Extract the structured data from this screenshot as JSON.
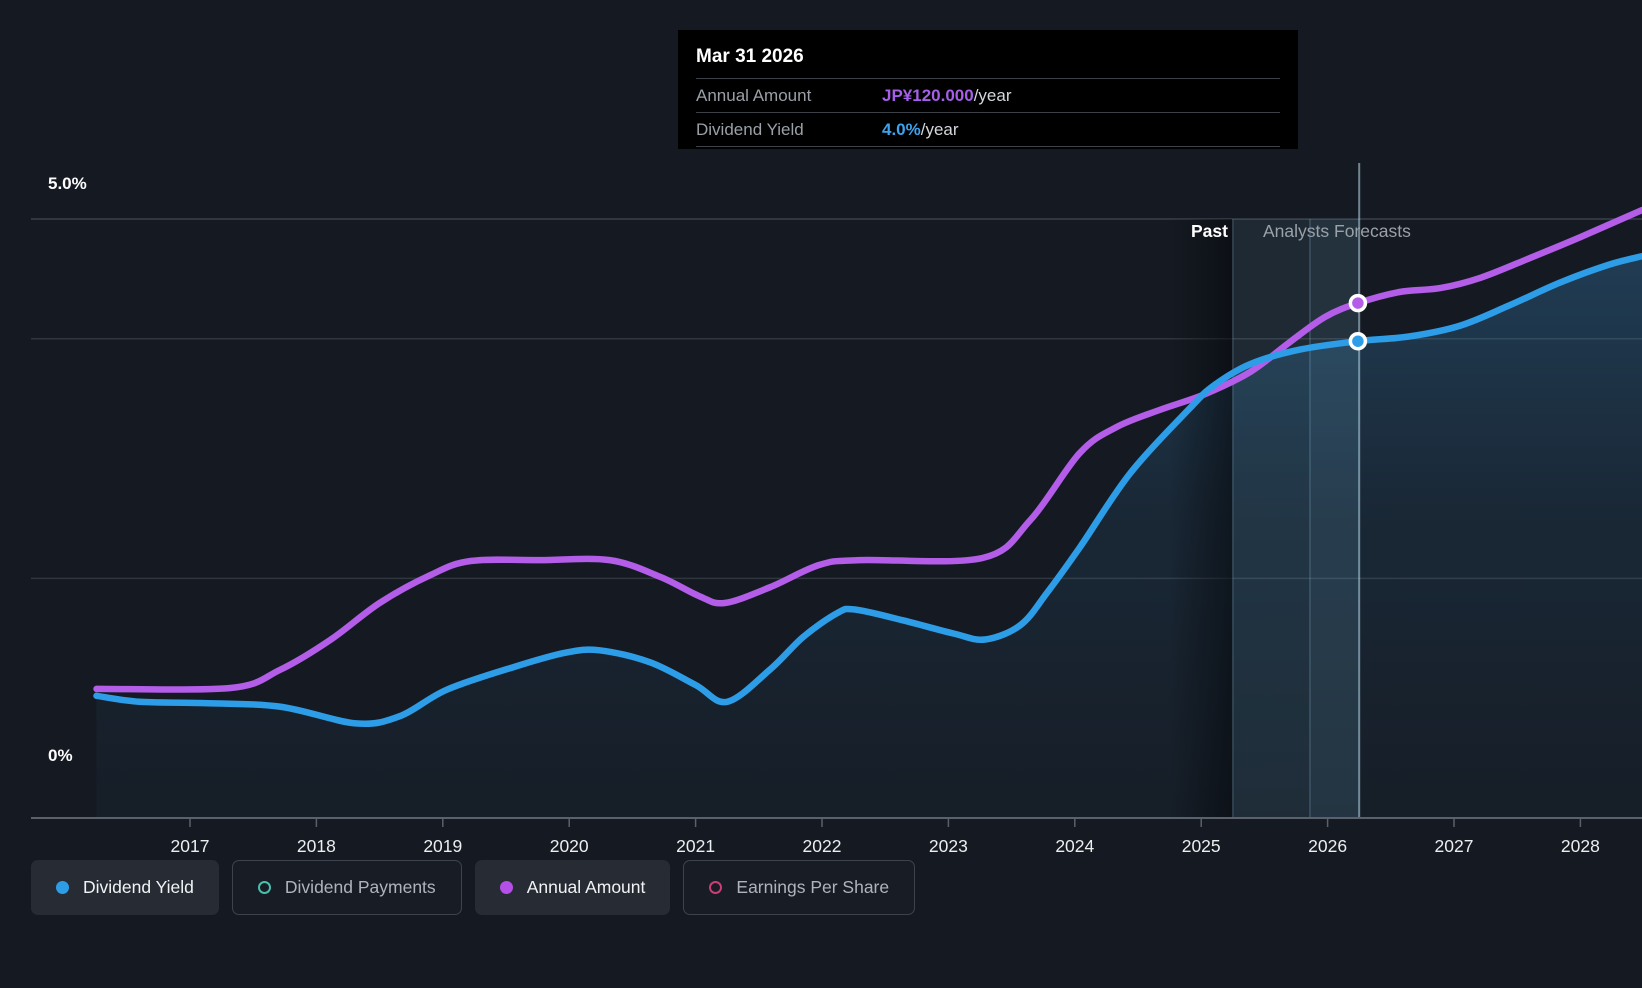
{
  "header_tooltip": {
    "date": "Mar 31 2026",
    "rows": [
      {
        "label": "Annual Amount",
        "value": "JP¥120.000",
        "suffix": "/year",
        "value_color": "#a55fe8"
      },
      {
        "label": "Dividend Yield",
        "value": "4.0%",
        "suffix": "/year",
        "value_color": "#3ea2ee"
      }
    ]
  },
  "axes": {
    "y_top_label": "5.0%",
    "y_bottom_label": "0%",
    "x_labels": [
      "2017",
      "2018",
      "2019",
      "2020",
      "2021",
      "2022",
      "2023",
      "2024",
      "2025",
      "2026",
      "2027",
      "2028"
    ]
  },
  "regions": {
    "past_label": "Past",
    "forecast_label": "Analysts Forecasts"
  },
  "legend": {
    "items": [
      {
        "label": "Dividend Yield",
        "marker": "filled",
        "color": "#2d9de8",
        "chip": "filled"
      },
      {
        "label": "Dividend Payments",
        "marker": "outline",
        "color": "#49c0ae",
        "chip": "outlined"
      },
      {
        "label": "Annual Amount",
        "marker": "filled",
        "color": "#b44fe8",
        "chip": "filled"
      },
      {
        "label": "Earnings Per Share",
        "marker": "outline",
        "color": "#cb3d74",
        "chip": "outlined"
      }
    ]
  },
  "chart_data": {
    "type": "line",
    "title": "Dividend yield history and forecast",
    "x_axis": {
      "ticks": [
        2017,
        2018,
        2019,
        2020,
        2021,
        2022,
        2023,
        2024,
        2025,
        2026,
        2027,
        2028
      ],
      "range": [
        2016.26,
        2028.49
      ]
    },
    "y_axis": {
      "unit": "%",
      "range": [
        0,
        5
      ],
      "gridlines_pct": [
        5,
        4,
        2
      ],
      "tick_labels": [
        "5.0%",
        "0%"
      ]
    },
    "grid": true,
    "legend_position": "bottom",
    "past_forecast_boundary_x": 2025.25,
    "past_fade_band": [
      2024.75,
      2025.25
    ],
    "highlight_bands": [
      {
        "x1": 2025.25,
        "x2": 2025.86,
        "alpha": 0.09
      },
      {
        "x1": 2025.86,
        "x2": 2026.25,
        "alpha": 0.14
      }
    ],
    "hover_x": 2026.25,
    "series": [
      {
        "name": "Dividend Yield",
        "unit": "%",
        "color": "#2d9de8",
        "area_fill": true,
        "points": [
          [
            2016.26,
            1.02
          ],
          [
            2016.6,
            0.97
          ],
          [
            2017.08,
            0.96
          ],
          [
            2017.71,
            0.93
          ],
          [
            2018.31,
            0.79
          ],
          [
            2018.66,
            0.85
          ],
          [
            2019.03,
            1.07
          ],
          [
            2019.56,
            1.26
          ],
          [
            2019.97,
            1.38
          ],
          [
            2020.24,
            1.4
          ],
          [
            2020.64,
            1.3
          ],
          [
            2021.0,
            1.11
          ],
          [
            2021.25,
            0.97
          ],
          [
            2021.59,
            1.24
          ],
          [
            2021.85,
            1.51
          ],
          [
            2022.12,
            1.71
          ],
          [
            2022.26,
            1.74
          ],
          [
            2022.64,
            1.65
          ],
          [
            2023.04,
            1.54
          ],
          [
            2023.29,
            1.49
          ],
          [
            2023.57,
            1.61
          ],
          [
            2023.78,
            1.88
          ],
          [
            2024.04,
            2.26
          ],
          [
            2024.44,
            2.88
          ],
          [
            2024.91,
            3.42
          ],
          [
            2025.1,
            3.61
          ],
          [
            2025.39,
            3.79
          ],
          [
            2025.78,
            3.91
          ],
          [
            2026.24,
            3.98
          ],
          [
            2026.65,
            4.02
          ],
          [
            2027.05,
            4.11
          ],
          [
            2027.44,
            4.28
          ],
          [
            2027.84,
            4.47
          ],
          [
            2028.23,
            4.62
          ],
          [
            2028.49,
            4.69
          ]
        ]
      },
      {
        "name": "Annual Amount",
        "unit": "JP¥/year",
        "color": "#b35de8",
        "area_fill": false,
        "points": [
          [
            2016.26,
            30.1
          ],
          [
            2017.32,
            30.3
          ],
          [
            2017.71,
            34.5
          ],
          [
            2018.11,
            41.5
          ],
          [
            2018.5,
            50.1
          ],
          [
            2018.9,
            56.6
          ],
          [
            2019.22,
            59.9
          ],
          [
            2019.77,
            60.1
          ],
          [
            2020.32,
            60.1
          ],
          [
            2020.72,
            56.2
          ],
          [
            2021.03,
            51.7
          ],
          [
            2021.23,
            50.1
          ],
          [
            2021.59,
            53.8
          ],
          [
            2021.98,
            59.0
          ],
          [
            2022.3,
            60.1
          ],
          [
            2023.27,
            60.6
          ],
          [
            2023.65,
            69.5
          ],
          [
            2024.04,
            85.1
          ],
          [
            2024.33,
            91.1
          ],
          [
            2024.67,
            95.1
          ],
          [
            2025.03,
            98.8
          ],
          [
            2025.39,
            104.0
          ],
          [
            2025.7,
            110.9
          ],
          [
            2025.98,
            116.8
          ],
          [
            2026.24,
            120.0
          ],
          [
            2026.57,
            122.6
          ],
          [
            2026.89,
            123.5
          ],
          [
            2027.21,
            125.9
          ],
          [
            2027.6,
            130.5
          ],
          [
            2028.0,
            135.4
          ],
          [
            2028.49,
            141.7
          ]
        ]
      }
    ],
    "markers": [
      {
        "series": "Annual Amount",
        "x": 2026.24,
        "y": 120.0,
        "color": "#b35de8"
      },
      {
        "series": "Dividend Yield",
        "x": 2026.24,
        "y": 3.98,
        "color": "#2d9de8"
      }
    ]
  },
  "colors": {
    "background": "#151a22",
    "gridline": "#30363e",
    "axis": "#5a616a",
    "hover_line": "#bcdcec",
    "area_fill_base": "#3a8cc8",
    "tooltip_bg": "#000000",
    "tooltip_divider": "#3c4147"
  }
}
